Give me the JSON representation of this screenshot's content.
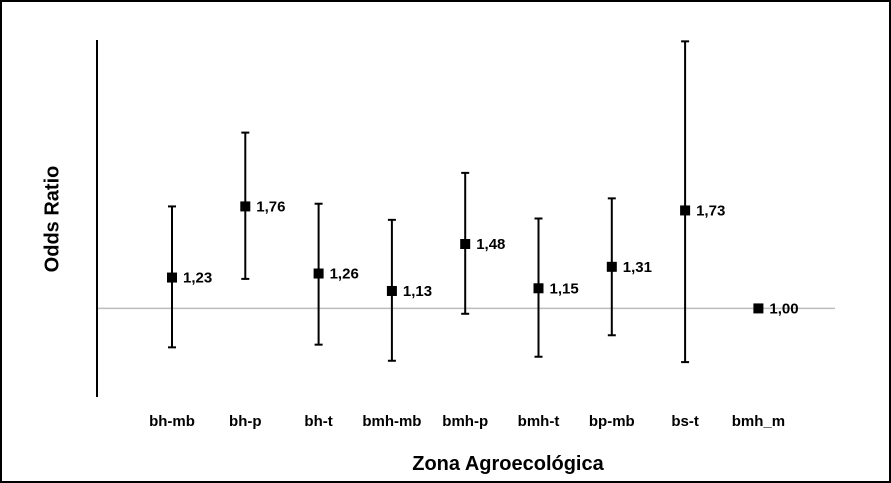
{
  "chart_data": {
    "type": "scatter",
    "subtype": "point-with-error-bars",
    "xlabel": "Zona Agroecológica",
    "ylabel": "Odds Ratio",
    "first_tick_label": "",
    "categories": [
      "bh-mb",
      "bh-p",
      "bh-t",
      "bmh-mb",
      "bmh-p",
      "bmh-t",
      "bp-mb",
      "bs-t",
      "bmh_m"
    ],
    "series": [
      {
        "values": [
          1.23,
          1.76,
          1.26,
          1.13,
          1.48,
          1.15,
          1.31,
          1.73,
          1.0
        ],
        "lower": [
          0.71,
          1.22,
          0.73,
          0.61,
          0.96,
          0.64,
          0.8,
          0.6,
          null
        ],
        "upper": [
          1.76,
          2.31,
          1.78,
          1.66,
          2.01,
          1.67,
          1.82,
          2.99,
          null
        ],
        "labels": [
          "1,23",
          "1,76",
          "1,26",
          "1,13",
          "1,48",
          "1,15",
          "1,31",
          "1,73",
          "1,00"
        ]
      }
    ],
    "reference_line": 1.0,
    "ylim": [
      0.34,
      3.0
    ],
    "grid": false,
    "colors": {
      "marker": "#000000",
      "reference_line": "#bdbdbd",
      "axis": "#000000"
    }
  }
}
